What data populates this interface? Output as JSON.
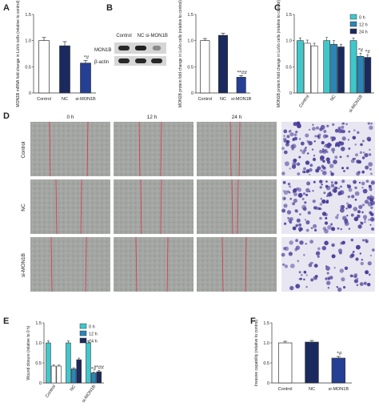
{
  "colors": {
    "control": "#ffffff",
    "nc": "#1b2a5e",
    "si": "#243f94",
    "h0": "#3ec8cc",
    "h12": "#2a86b6",
    "h24": "#1b2a5e",
    "stroke": "#333333",
    "scratch": "#d9344a",
    "transwell_bg": "#e8e6f0",
    "transwell_cell": "#4a3f9a"
  },
  "panels": {
    "A": "A",
    "B": "B",
    "C": "C",
    "D": "D",
    "E": "E",
    "F": "F"
  },
  "blot": {
    "lanes": [
      "Control",
      "NC",
      "si-MON1B"
    ],
    "rows": [
      "MON1B",
      "β-actin"
    ],
    "intensity": {
      "MON1B": [
        1.0,
        1.05,
        0.35
      ],
      "β-actin": [
        1.0,
        1.0,
        1.0
      ]
    }
  },
  "micro": {
    "columns": [
      "0 h",
      "12 h",
      "24 h"
    ],
    "rows": [
      "Control",
      "NC",
      "si-MON1B"
    ]
  },
  "chart_data": [
    {
      "id": "A",
      "type": "bar",
      "categories": [
        "Control",
        "NC",
        "si-MON1B"
      ],
      "values": [
        1.0,
        0.9,
        0.57
      ],
      "errors": [
        0.06,
        0.08,
        0.05
      ],
      "annotations": [
        "",
        "",
        "*#"
      ],
      "ylabel": "MON1B mRNA fold change in LoVo cells (relative to control)",
      "ylim": [
        0,
        1.5
      ],
      "yticks": [
        "0",
        "0.5",
        "1.0",
        "1.5"
      ]
    },
    {
      "id": "B",
      "type": "bar",
      "categories": [
        "Control",
        "NC",
        "si-MON1B"
      ],
      "values": [
        1.0,
        1.1,
        0.3
      ],
      "errors": [
        0.04,
        0.04,
        0.03
      ],
      "annotations": [
        "",
        "",
        "**##"
      ],
      "ylabel": "MON1B protein fold change in LoVo cells (relative to control)",
      "ylim": [
        0,
        1.5
      ],
      "yticks": [
        "0",
        "0.5",
        "1.0",
        "1.5"
      ]
    },
    {
      "id": "C",
      "type": "bar",
      "categories": [
        "Control",
        "NC",
        "si-MON1B"
      ],
      "series": [
        {
          "name": "0 h",
          "values": [
            1.0,
            1.0,
            1.0
          ],
          "errors": [
            0.05,
            0.06,
            0.05
          ]
        },
        {
          "name": "12 h",
          "values": [
            0.95,
            0.93,
            0.7
          ],
          "errors": [
            0.06,
            0.07,
            0.06
          ]
        },
        {
          "name": "24 h",
          "values": [
            0.9,
            0.88,
            0.68
          ],
          "errors": [
            0.05,
            0.05,
            0.05
          ]
        }
      ],
      "annotations": [
        [
          "",
          "",
          ""
        ],
        [
          "",
          "",
          "*#"
        ],
        [
          "",
          "",
          "*#"
        ]
      ],
      "ylabel": "MON1B protein fold change in LoVo cells (relative to control)",
      "ylim": [
        0,
        1.5
      ],
      "yticks": [
        "0",
        "0.5",
        "1.0",
        "1.5"
      ],
      "legend": "top-right"
    },
    {
      "id": "E",
      "type": "bar",
      "categories": [
        "Control",
        "NC",
        "si-MON1B"
      ],
      "series": [
        {
          "name": "0 h",
          "values": [
            1.0,
            1.0,
            1.0
          ],
          "errors": [
            0.05,
            0.05,
            0.05
          ]
        },
        {
          "name": "12 h",
          "values": [
            0.42,
            0.35,
            0.25
          ],
          "errors": [
            0.03,
            0.03,
            0.02
          ]
        },
        {
          "name": "24 h",
          "values": [
            0.42,
            0.58,
            0.28
          ],
          "errors": [
            0.03,
            0.04,
            0.03
          ]
        }
      ],
      "annotations": [
        [
          "",
          "",
          ""
        ],
        [
          "",
          "",
          "*#"
        ],
        [
          "",
          "",
          "**##"
        ]
      ],
      "ylabel": "Wound closure (relative to 0 h)",
      "ylim": [
        0,
        1.5
      ],
      "yticks": [
        "0",
        "0.5",
        "1.0",
        "1.5"
      ],
      "legend": "top-right"
    },
    {
      "id": "F",
      "type": "bar",
      "categories": [
        "Control",
        "NC",
        "si-MON1B"
      ],
      "values": [
        1.0,
        1.02,
        0.62
      ],
      "errors": [
        0.04,
        0.04,
        0.04
      ],
      "annotations": [
        "",
        "",
        "*#"
      ],
      "ylabel": "Invasive capability (relative to control)",
      "ylim": [
        0,
        1.5
      ],
      "yticks": [
        "0",
        "0.5",
        "1.0",
        "1.5"
      ]
    }
  ]
}
